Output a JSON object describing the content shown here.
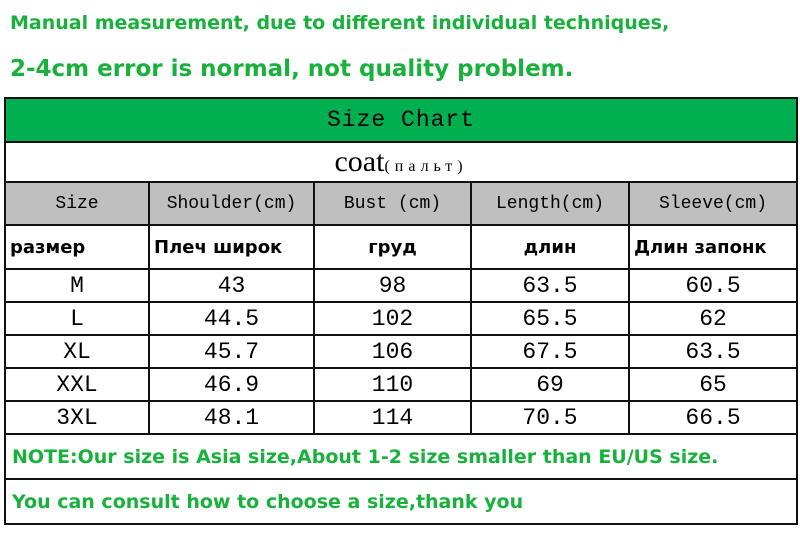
{
  "header": {
    "line1": "Manual measurement, due to different individual techniques,",
    "line2": "2-4cm error is normal, not quality problem."
  },
  "table": {
    "title": "Size Chart",
    "subtitle": "coat",
    "subtitle_ru": "(пальт)",
    "columns": [
      "Size",
      "Shoulder(cm)",
      "Bust (cm)",
      "Length(cm)",
      "Sleeve(cm)"
    ],
    "columns_ru": [
      "размер",
      "Плеч широк",
      "груд",
      "длин",
      "Длин запонк"
    ],
    "rows": [
      [
        "M",
        "43",
        "98",
        "63.5",
        "60.5"
      ],
      [
        "L",
        "44.5",
        "102",
        "65.5",
        "62"
      ],
      [
        "XL",
        "45.7",
        "106",
        "67.5",
        "63.5"
      ],
      [
        "XXL",
        "46.9",
        "110",
        "69",
        "65"
      ],
      [
        "3XL",
        "48.1",
        "114",
        "70.5",
        "66.5"
      ]
    ]
  },
  "notes": [
    "NOTE:Our size is Asia size,About 1-2 size smaller than EU/US size.",
    "You can consult how to choose a size,thank you"
  ]
}
